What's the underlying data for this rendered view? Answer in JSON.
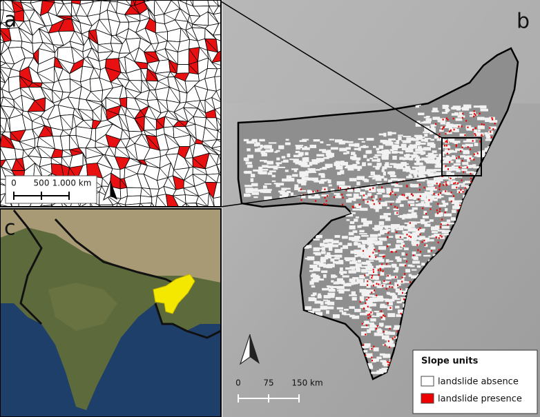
{
  "panels": {
    "a": {
      "label": "a",
      "scale_labels": [
        "0",
        "500",
        "1.000 km"
      ]
    },
    "b": {
      "label": "b",
      "scale_labels": [
        "0",
        "75",
        "150 km"
      ]
    },
    "c": {
      "label": "c"
    }
  },
  "legend": {
    "title": "Slope units",
    "items": [
      "landslide absence",
      "landslide presence"
    ]
  }
}
